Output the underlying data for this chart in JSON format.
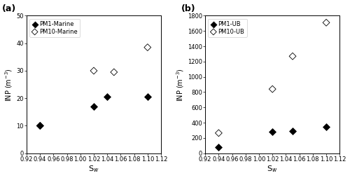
{
  "panel_a": {
    "label": "(a)",
    "pm1": {
      "x": [
        0.94,
        1.02,
        1.04,
        1.1
      ],
      "y": [
        10,
        17,
        20.5,
        20.5
      ],
      "label": "PM1-Marine"
    },
    "pm10": {
      "x": [
        0.94,
        1.02,
        1.05,
        1.1
      ],
      "y": [
        10,
        30,
        29.5,
        38.5
      ],
      "label": "PM10-Marine"
    },
    "ylabel": "INP (m$^{-3}$)",
    "xlabel": "S$_w$",
    "ylim": [
      0,
      50
    ],
    "yticks": [
      0,
      10,
      20,
      30,
      40,
      50
    ],
    "xlim": [
      0.92,
      1.12
    ],
    "xticks": [
      0.92,
      0.94,
      0.96,
      0.98,
      1.0,
      1.02,
      1.04,
      1.06,
      1.08,
      1.1,
      1.12
    ],
    "xticklabels": [
      "0.92",
      "0.94",
      "0.96",
      "0.98",
      "1.00",
      "1.02",
      "1.04",
      "1.06",
      "1.08",
      "1.10",
      "1.12"
    ]
  },
  "panel_b": {
    "label": "(b)",
    "pm1": {
      "x": [
        0.94,
        1.02,
        1.05,
        1.1
      ],
      "y": [
        80,
        285,
        295,
        345
      ],
      "label": "PM1-UB"
    },
    "pm10": {
      "x": [
        0.94,
        1.02,
        1.05,
        1.1
      ],
      "y": [
        265,
        840,
        1270,
        1710
      ],
      "label": "PM10-UB"
    },
    "ylabel": "INP (m$^{-3}$)",
    "xlabel": "S$_w$",
    "ylim": [
      0,
      1800
    ],
    "yticks": [
      0,
      200,
      400,
      600,
      800,
      1000,
      1200,
      1400,
      1600,
      1800
    ],
    "xlim": [
      0.92,
      1.12
    ],
    "xticks": [
      0.92,
      0.94,
      0.96,
      0.98,
      1.0,
      1.02,
      1.04,
      1.06,
      1.08,
      1.1,
      1.12
    ],
    "xticklabels": [
      "0.92",
      "0.94",
      "0.96",
      "0.98",
      "1.00",
      "1.02",
      "1.04",
      "1.06",
      "1.08",
      "1.10",
      "1.12"
    ]
  },
  "fig_width": 5.0,
  "fig_height": 2.54,
  "dpi": 100,
  "tick_fontsize": 6,
  "label_fontsize": 7,
  "legend_fontsize": 6,
  "panel_label_fontsize": 9,
  "marker_size": 25
}
